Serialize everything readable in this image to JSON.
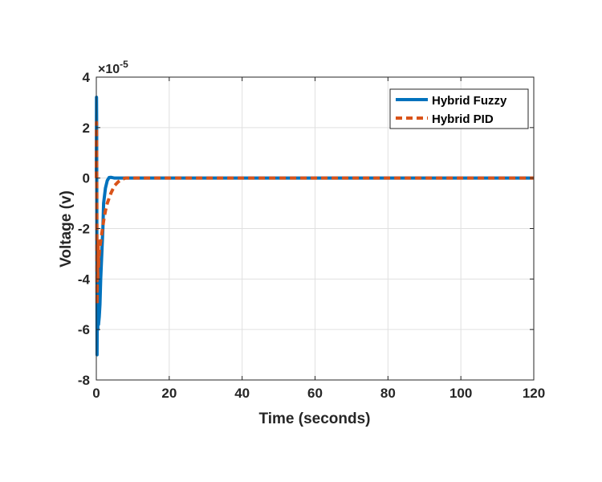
{
  "chart_data": {
    "type": "line",
    "title": "",
    "xlabel": "Time (seconds)",
    "ylabel": "Voltage (v)",
    "xlim": [
      0,
      120
    ],
    "ylim": [
      -8,
      4
    ],
    "xticks": [
      0,
      20,
      40,
      60,
      80,
      100,
      120
    ],
    "yticks": [
      -8,
      -6,
      -4,
      -2,
      0,
      2,
      4
    ],
    "xtick_labels": [
      "0",
      "20",
      "40",
      "60",
      "80",
      "100",
      "120"
    ],
    "ytick_labels": [
      "-8",
      "-6",
      "-4",
      "-2",
      "0",
      "2",
      "4"
    ],
    "y_exponent_label": "×10",
    "y_exponent_power": "-5",
    "grid": true,
    "legend_position": "top-right",
    "series": [
      {
        "name": "Hybrid Fuzzy",
        "color": "#0072BD",
        "style": "solid",
        "x": [
          0,
          0.05,
          0.1,
          0.2,
          0.3,
          0.4,
          0.5,
          0.6,
          0.8,
          1.0,
          1.2,
          1.5,
          1.8,
          2.0,
          2.5,
          3.0,
          3.5,
          4.0,
          5.0,
          6.0,
          8.0,
          10,
          20,
          40,
          60,
          80,
          100,
          120
        ],
        "values": [
          0,
          3.2,
          2.0,
          -7.0,
          -4.5,
          -6.0,
          -3.0,
          -5.8,
          -5.5,
          -5.0,
          -4.0,
          -3.0,
          -2.0,
          -1.0,
          -0.4,
          -0.1,
          0.02,
          0.03,
          0.0,
          0.0,
          0.0,
          0.0,
          0.0,
          0.0,
          0.0,
          0.0,
          0.0,
          0.0
        ]
      },
      {
        "name": "Hybrid PID",
        "color": "#D95319",
        "style": "dashed",
        "x": [
          0,
          0.05,
          0.1,
          0.2,
          0.3,
          0.4,
          0.5,
          0.6,
          0.8,
          1.0,
          1.5,
          2.0,
          2.5,
          3.0,
          4.0,
          5.0,
          6.0,
          7.0,
          8.0,
          10,
          20,
          40,
          60,
          80,
          100,
          120
        ],
        "values": [
          0,
          2.2,
          1.0,
          -5.0,
          -3.0,
          -4.0,
          -2.5,
          -3.5,
          -3.0,
          -2.7,
          -2.2,
          -1.7,
          -1.3,
          -1.0,
          -0.6,
          -0.3,
          -0.15,
          -0.05,
          0.0,
          0.0,
          0.0,
          0.0,
          0.0,
          0.0,
          0.0,
          0.0
        ]
      }
    ]
  }
}
